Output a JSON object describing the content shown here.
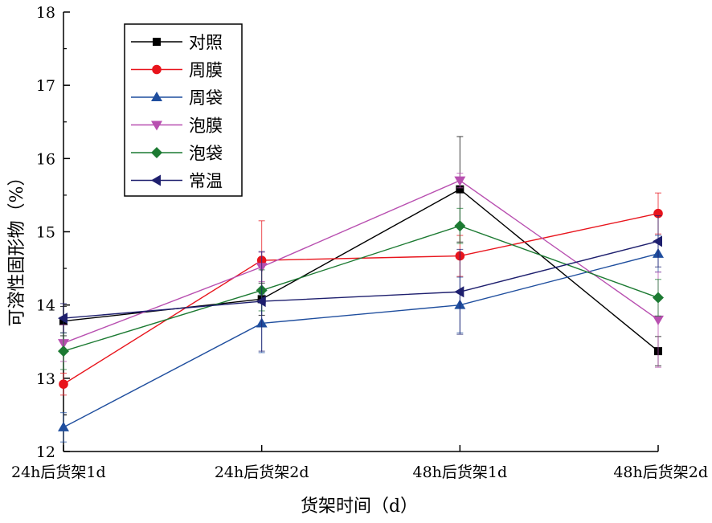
{
  "chart_data": {
    "type": "line",
    "title": "",
    "xlabel": "货架时间（d）",
    "ylabel": "可溶性固形物（%）",
    "categories": [
      "24h后货架1d",
      "24h后货架2d",
      "48h后货架1d",
      "48h后货架2d"
    ],
    "ylim": [
      12,
      18
    ],
    "yticks": [
      12,
      13,
      14,
      15,
      16,
      17,
      18
    ],
    "grid": false,
    "legend_position": "top-left",
    "series": [
      {
        "name": "对照",
        "color": "#000000",
        "marker": "square",
        "values": [
          13.78,
          14.08,
          15.58,
          13.37
        ],
        "errors": [
          0.2,
          0.22,
          0.72,
          0.2
        ]
      },
      {
        "name": "周膜",
        "color": "#e8141c",
        "marker": "circle",
        "values": [
          12.92,
          14.61,
          14.67,
          15.25
        ],
        "errors": [
          0.15,
          0.54,
          0.28,
          0.28
        ]
      },
      {
        "name": "周袋",
        "color": "#1f4e9e",
        "marker": "triangle-up",
        "values": [
          12.33,
          13.75,
          14.0,
          14.7
        ],
        "errors": [
          0.2,
          0.4,
          0.38,
          0.25
        ]
      },
      {
        "name": "泡膜",
        "color": "#b84fb0",
        "marker": "triangle-down",
        "values": [
          13.48,
          14.52,
          15.7,
          13.8
        ],
        "errors": [
          0.25,
          0.2,
          0.1,
          0.65
        ]
      },
      {
        "name": "泡袋",
        "color": "#1c7a32",
        "marker": "diamond",
        "values": [
          13.37,
          14.2,
          15.08,
          14.1
        ],
        "errors": [
          0.25,
          0.28,
          0.24,
          0.25
        ]
      },
      {
        "name": "常温",
        "color": "#1e1f6e",
        "marker": "triangle-left",
        "values": [
          13.82,
          14.05,
          14.18,
          14.87
        ],
        "errors": [
          0.2,
          0.68,
          0.58,
          0.35
        ]
      }
    ]
  }
}
